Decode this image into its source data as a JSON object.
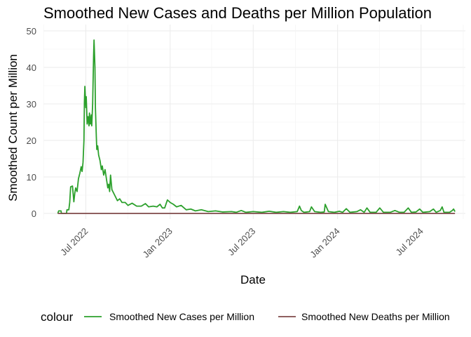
{
  "chart_data": {
    "type": "line",
    "title": "Smoothed New Cases and Deaths per Million Population",
    "xlabel": "Date",
    "ylabel": "Smoothed Count per Million",
    "legend_title": "colour",
    "legend_position": "bottom",
    "grid": true,
    "ylim": [
      0,
      50
    ],
    "xlim": [
      "2022-04-15",
      "2024-09-25"
    ],
    "x_ticks": [
      {
        "date": "2022-07-01",
        "label": "Jul 2022"
      },
      {
        "date": "2023-01-01",
        "label": "Jan 2023"
      },
      {
        "date": "2023-07-01",
        "label": "Jul 2023"
      },
      {
        "date": "2024-01-01",
        "label": "Jan 2024"
      },
      {
        "date": "2024-07-01",
        "label": "Jul 2024"
      }
    ],
    "y_ticks": [
      0,
      10,
      20,
      30,
      40,
      50
    ],
    "series": [
      {
        "name": "Smoothed New Cases per Million",
        "color": "#2ca02c",
        "points": [
          [
            "2022-05-01",
            0.0
          ],
          [
            "2022-05-03",
            0.7
          ],
          [
            "2022-05-08",
            0.7
          ],
          [
            "2022-05-09",
            0.0
          ],
          [
            "2022-05-20",
            0.0
          ],
          [
            "2022-05-21",
            1.0
          ],
          [
            "2022-05-25",
            1.0
          ],
          [
            "2022-05-27",
            3.0
          ],
          [
            "2022-05-29",
            7.3
          ],
          [
            "2022-06-02",
            7.5
          ],
          [
            "2022-06-05",
            3.2
          ],
          [
            "2022-06-07",
            5.5
          ],
          [
            "2022-06-09",
            7.0
          ],
          [
            "2022-06-12",
            6.0
          ],
          [
            "2022-06-15",
            9.5
          ],
          [
            "2022-06-18",
            11.0
          ],
          [
            "2022-06-21",
            12.8
          ],
          [
            "2022-06-23",
            11.5
          ],
          [
            "2022-06-25",
            14.0
          ],
          [
            "2022-06-27",
            20.0
          ],
          [
            "2022-06-28",
            30.5
          ],
          [
            "2022-06-29",
            34.8
          ],
          [
            "2022-07-01",
            29.0
          ],
          [
            "2022-07-02",
            32.0
          ],
          [
            "2022-07-04",
            24.5
          ],
          [
            "2022-07-06",
            26.5
          ],
          [
            "2022-07-08",
            24.0
          ],
          [
            "2022-07-09",
            27.5
          ],
          [
            "2022-07-11",
            24.5
          ],
          [
            "2022-07-13",
            27.0
          ],
          [
            "2022-07-14",
            24.0
          ],
          [
            "2022-07-16",
            30.0
          ],
          [
            "2022-07-18",
            43.0
          ],
          [
            "2022-07-19",
            47.5
          ],
          [
            "2022-07-21",
            40.0
          ],
          [
            "2022-07-22",
            29.0
          ],
          [
            "2022-07-24",
            21.0
          ],
          [
            "2022-07-25",
            17.5
          ],
          [
            "2022-07-27",
            18.5
          ],
          [
            "2022-07-29",
            16.0
          ],
          [
            "2022-08-01",
            14.5
          ],
          [
            "2022-08-04",
            12.0
          ],
          [
            "2022-08-06",
            13.0
          ],
          [
            "2022-08-09",
            10.5
          ],
          [
            "2022-08-12",
            12.0
          ],
          [
            "2022-08-15",
            9.5
          ],
          [
            "2022-08-18",
            7.0
          ],
          [
            "2022-08-20",
            8.0
          ],
          [
            "2022-08-22",
            6.0
          ],
          [
            "2022-08-24",
            10.5
          ],
          [
            "2022-08-27",
            6.5
          ],
          [
            "2022-08-31",
            5.5
          ],
          [
            "2022-09-04",
            4.5
          ],
          [
            "2022-09-08",
            3.5
          ],
          [
            "2022-09-13",
            4.0
          ],
          [
            "2022-09-18",
            3.0
          ],
          [
            "2022-09-25",
            3.0
          ],
          [
            "2022-10-01",
            2.2
          ],
          [
            "2022-10-10",
            2.8
          ],
          [
            "2022-10-20",
            2.0
          ],
          [
            "2022-10-30",
            2.0
          ],
          [
            "2022-11-08",
            2.7
          ],
          [
            "2022-11-15",
            1.8
          ],
          [
            "2022-11-25",
            2.0
          ],
          [
            "2022-12-03",
            1.8
          ],
          [
            "2022-12-10",
            2.5
          ],
          [
            "2022-12-15",
            1.5
          ],
          [
            "2022-12-20",
            1.5
          ],
          [
            "2022-12-26",
            3.7
          ],
          [
            "2023-01-01",
            3.0
          ],
          [
            "2023-01-08",
            2.5
          ],
          [
            "2023-01-15",
            1.8
          ],
          [
            "2023-01-25",
            2.2
          ],
          [
            "2023-02-05",
            1.0
          ],
          [
            "2023-02-15",
            1.2
          ],
          [
            "2023-02-25",
            0.7
          ],
          [
            "2023-03-10",
            1.0
          ],
          [
            "2023-03-25",
            0.5
          ],
          [
            "2023-04-10",
            0.7
          ],
          [
            "2023-04-25",
            0.4
          ],
          [
            "2023-05-15",
            0.5
          ],
          [
            "2023-05-25",
            0.3
          ],
          [
            "2023-06-05",
            0.8
          ],
          [
            "2023-06-15",
            0.3
          ],
          [
            "2023-07-01",
            0.5
          ],
          [
            "2023-07-20",
            0.3
          ],
          [
            "2023-08-05",
            0.6
          ],
          [
            "2023-08-20",
            0.3
          ],
          [
            "2023-09-05",
            0.5
          ],
          [
            "2023-09-20",
            0.3
          ],
          [
            "2023-10-05",
            0.5
          ],
          [
            "2023-10-10",
            2.0
          ],
          [
            "2023-10-14",
            0.8
          ],
          [
            "2023-10-20",
            0.3
          ],
          [
            "2023-11-01",
            0.5
          ],
          [
            "2023-11-05",
            1.8
          ],
          [
            "2023-11-12",
            0.5
          ],
          [
            "2023-11-25",
            0.3
          ],
          [
            "2023-12-03",
            0.4
          ],
          [
            "2023-12-05",
            2.5
          ],
          [
            "2023-12-12",
            0.5
          ],
          [
            "2023-12-25",
            0.3
          ],
          [
            "2024-01-05",
            0.6
          ],
          [
            "2024-01-12",
            0.3
          ],
          [
            "2024-01-20",
            1.3
          ],
          [
            "2024-01-28",
            0.3
          ],
          [
            "2024-02-12",
            0.5
          ],
          [
            "2024-02-20",
            1.0
          ],
          [
            "2024-02-28",
            0.3
          ],
          [
            "2024-03-05",
            1.5
          ],
          [
            "2024-03-12",
            0.3
          ],
          [
            "2024-03-25",
            0.3
          ],
          [
            "2024-04-02",
            1.5
          ],
          [
            "2024-04-10",
            0.3
          ],
          [
            "2024-04-25",
            0.3
          ],
          [
            "2024-05-05",
            0.8
          ],
          [
            "2024-05-15",
            0.3
          ],
          [
            "2024-05-25",
            0.3
          ],
          [
            "2024-06-03",
            1.5
          ],
          [
            "2024-06-10",
            0.3
          ],
          [
            "2024-06-20",
            0.4
          ],
          [
            "2024-06-28",
            1.2
          ],
          [
            "2024-07-05",
            0.3
          ],
          [
            "2024-07-20",
            0.5
          ],
          [
            "2024-07-28",
            1.2
          ],
          [
            "2024-08-03",
            0.3
          ],
          [
            "2024-08-12",
            0.8
          ],
          [
            "2024-08-16",
            1.8
          ],
          [
            "2024-08-20",
            0.3
          ],
          [
            "2024-09-01",
            0.3
          ],
          [
            "2024-09-07",
            0.8
          ],
          [
            "2024-09-10",
            1.2
          ],
          [
            "2024-09-13",
            0.5
          ]
        ]
      },
      {
        "name": "Smoothed New Deaths per Million",
        "color": "#7f4a4a",
        "points": [
          [
            "2022-05-01",
            0.0
          ],
          [
            "2022-07-01",
            0.0
          ],
          [
            "2023-01-01",
            0.0
          ],
          [
            "2023-07-01",
            0.0
          ],
          [
            "2024-01-01",
            0.0
          ],
          [
            "2024-07-01",
            0.0
          ],
          [
            "2024-09-13",
            0.0
          ]
        ]
      }
    ]
  }
}
